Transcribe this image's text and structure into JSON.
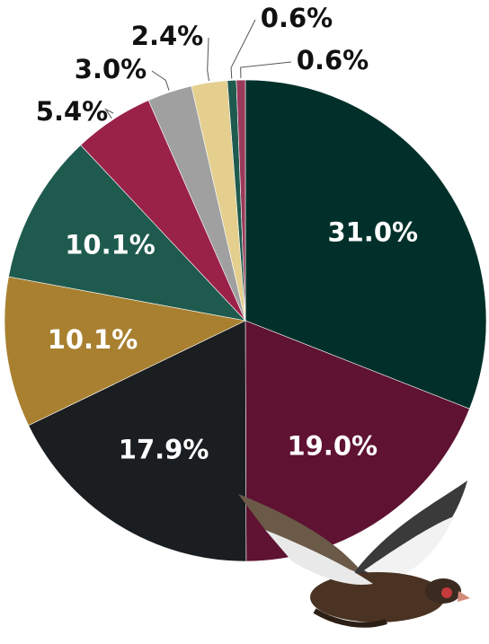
{
  "chart_data": {
    "type": "pie",
    "values": [
      31.0,
      19.0,
      17.9,
      10.1,
      10.1,
      5.4,
      3.0,
      2.4,
      0.6,
      0.6
    ],
    "value_labels": [
      "31.0%",
      "19.0%",
      "17.9%",
      "10.1%",
      "10.1%",
      "5.4%",
      "3.0%",
      "2.4%",
      "0.6%",
      "0.6%"
    ],
    "colors": [
      "#01302a",
      "#5f1232",
      "#1b1e20",
      "#a88030",
      "#1f5a4e",
      "#9a2148",
      "#a0a0a0",
      "#e4cf8f",
      "#1f5a4e",
      "#9a3a5a"
    ]
  }
}
